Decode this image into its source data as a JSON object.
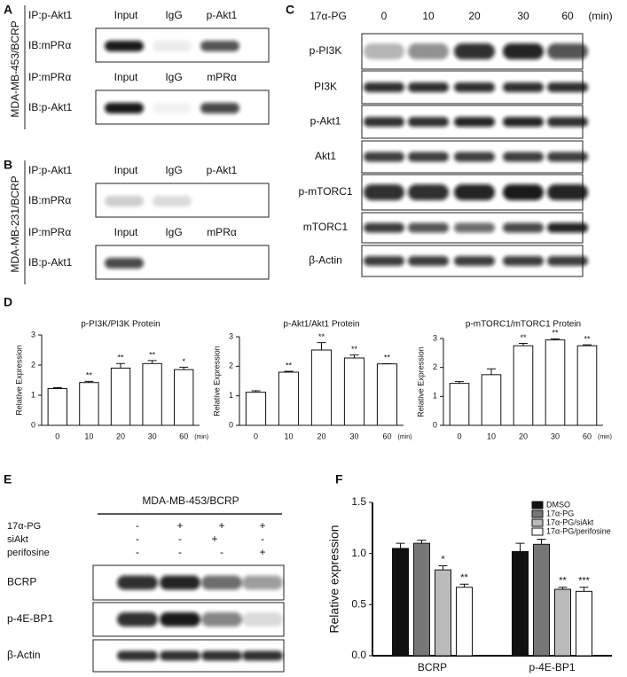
{
  "panel_a": {
    "letter": "A",
    "cell_line": "MDA-MB-453/BCRP",
    "blocks": [
      {
        "ip": "IP:p-Akt1",
        "columns": [
          "Input",
          "IgG",
          "p-Akt1"
        ],
        "ib": "IB:mPRα"
      },
      {
        "ip": "IP:mPRα",
        "columns": [
          "Input",
          "IgG",
          "mPRα"
        ],
        "ib": "IB:p-Akt1"
      }
    ]
  },
  "panel_b": {
    "letter": "B",
    "cell_line": "MDA-MB-231/BCRP",
    "blocks": [
      {
        "ip": "IP:p-Akt1",
        "columns": [
          "Input",
          "IgG",
          "p-Akt1"
        ],
        "ib": "IB:mPRα"
      },
      {
        "ip": "IP:mPRα",
        "columns": [
          "Input",
          "IgG",
          "mPRα"
        ],
        "ib": "IB:p-Akt1"
      }
    ]
  },
  "panel_c": {
    "letter": "C",
    "treatment": "17α-PG",
    "times": [
      "0",
      "10",
      "20",
      "30",
      "60"
    ],
    "unit": "(min)",
    "rows": [
      "p-PI3K",
      "PI3K",
      "p-Akt1",
      "Akt1",
      "p-mTORC1",
      "mTORC1",
      "β-Actin"
    ]
  },
  "panel_d": {
    "letter": "D"
  },
  "panel_e": {
    "letter": "E",
    "cell_line": "MDA-MB-453/BCRP",
    "conditions": [
      {
        "label": "17α-PG",
        "marks": [
          "-",
          "+",
          "+",
          "+"
        ]
      },
      {
        "label": "siAkt",
        "marks": [
          "-",
          "-",
          "+",
          "-"
        ]
      },
      {
        "label": "perifosine",
        "marks": [
          "-",
          "-",
          "-",
          "+"
        ]
      }
    ],
    "blots": [
      "BCRP",
      "p-4E-BP1",
      "β-Actin"
    ]
  },
  "panel_f": {
    "letter": "F"
  },
  "chart_data": [
    {
      "type": "bar",
      "title": "p-PI3K/PI3K Protein",
      "y_label": "Relative Expression",
      "x_label": "(min)",
      "categories": [
        "0",
        "10",
        "20",
        "30",
        "60"
      ],
      "values": [
        1.22,
        1.42,
        1.9,
        2.05,
        1.85
      ],
      "errors": [
        0.03,
        0.04,
        0.15,
        0.1,
        0.08
      ],
      "annotations": [
        null,
        "**",
        "**",
        "**",
        "*"
      ],
      "color": "#ffffff",
      "ylim": [
        0,
        3
      ],
      "yticks": [
        0,
        1,
        2,
        3
      ]
    },
    {
      "type": "bar",
      "title": "p-Akt1/Akt1 Protein",
      "y_label": "Relative Expression",
      "x_label": "(min)",
      "categories": [
        "0",
        "10",
        "20",
        "30",
        "60"
      ],
      "values": [
        1.12,
        1.8,
        2.55,
        2.28,
        2.08
      ],
      "errors": [
        0.05,
        0.03,
        0.25,
        0.1,
        0.01
      ],
      "annotations": [
        null,
        "**",
        "**",
        "**",
        "**"
      ],
      "color": "#ffffff",
      "ylim": [
        0,
        3
      ],
      "yticks": [
        0,
        1,
        2,
        3
      ]
    },
    {
      "type": "bar",
      "title": "p-mTORC1/mTORC1 Protein",
      "y_label": "Relative Expression",
      "x_label": "(min)",
      "categories": [
        "0",
        "10",
        "20",
        "30",
        "60"
      ],
      "values": [
        1.45,
        1.75,
        2.75,
        2.95,
        2.75
      ],
      "errors": [
        0.06,
        0.2,
        0.08,
        0.04,
        0.03
      ],
      "annotations": [
        null,
        null,
        "**",
        "**",
        "**"
      ],
      "color": "#ffffff",
      "ylim": [
        0,
        3
      ],
      "yticks": [
        0,
        1,
        2,
        3
      ]
    },
    {
      "type": "grouped_bar",
      "y_label": "Relative expression",
      "categories": [
        "BCRP",
        "p-4E-BP1"
      ],
      "series": [
        {
          "name": "DMSO",
          "color": "#111111",
          "values": [
            1.05,
            1.02
          ],
          "errors": [
            0.05,
            0.08
          ],
          "annotations": [
            null,
            null
          ]
        },
        {
          "name": "17α-PG",
          "color": "#777777",
          "values": [
            1.1,
            1.09
          ],
          "errors": [
            0.03,
            0.05
          ],
          "annotations": [
            null,
            null
          ]
        },
        {
          "name": "17α-PG/siAkt",
          "color": "#bbbbbb",
          "values": [
            0.84,
            0.65
          ],
          "errors": [
            0.04,
            0.02
          ],
          "annotations": [
            "*",
            "**"
          ]
        },
        {
          "name": "17α-PG/perifosine",
          "color": "#ffffff",
          "values": [
            0.67,
            0.63
          ],
          "errors": [
            0.03,
            0.04
          ],
          "annotations": [
            "**",
            "***"
          ]
        }
      ],
      "ylim": [
        0,
        1.5
      ],
      "yticks": [
        {
          "value": 0,
          "label": "0.0"
        },
        {
          "value": 0.5,
          "label": "0.5"
        },
        {
          "value": 1,
          "label": "1.0"
        },
        {
          "value": 1.5,
          "label": "1.5"
        }
      ],
      "legend": "top-right"
    }
  ]
}
